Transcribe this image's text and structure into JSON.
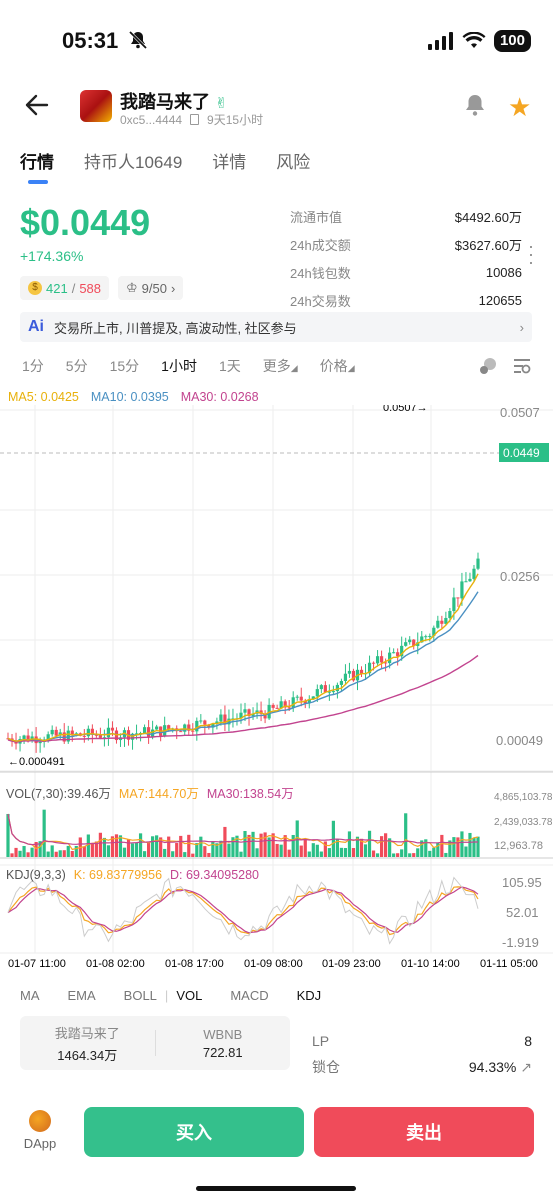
{
  "status": {
    "time": "05:31",
    "battery": "100"
  },
  "header": {
    "title": "我踏马来了",
    "address": "0xc5...4444",
    "age": "9天15小时"
  },
  "tabs": [
    {
      "label": "行情"
    },
    {
      "label": "持币人10649"
    },
    {
      "label": "详情"
    },
    {
      "label": "风险"
    }
  ],
  "price": {
    "value": "$0.0449",
    "change": "+174.36%",
    "holders_a": "421",
    "holders_b": "588",
    "rank": "9/50"
  },
  "stats": [
    {
      "label": "流通市值",
      "value": "$4492.60万"
    },
    {
      "label": "24h成交额",
      "value": "$3627.60万"
    },
    {
      "label": "24h钱包数",
      "value": "10086"
    },
    {
      "label": "24h交易数",
      "value": "120655"
    }
  ],
  "ai": {
    "badge": "Ai",
    "text": "交易所上市, 川普提及, 高波动性, 社区参与"
  },
  "intervals": [
    {
      "label": "1分"
    },
    {
      "label": "5分"
    },
    {
      "label": "15分"
    },
    {
      "label": "1小时"
    },
    {
      "label": "1天"
    },
    {
      "label": "更多"
    },
    {
      "label": "价格"
    }
  ],
  "ma": {
    "ma5": "MA5: 0.0425",
    "ma10": "MA10: 0.0395",
    "ma30": "MA30: 0.0268"
  },
  "chart_data": {
    "type": "candlestick",
    "y_axis": [
      "0.0507",
      "0.0256",
      "0.00049"
    ],
    "high_label": "0.0507→",
    "low_label": "←0.000491",
    "current": "0.0449",
    "x_axis": [
      "01-07 11:00",
      "01-08 02:00",
      "01-08 17:00",
      "01-09 08:00",
      "01-09 23:00",
      "01-10 14:00",
      "01-11 05:00"
    ]
  },
  "vol": {
    "title": "VOL(7,30):39.46万",
    "ma7": "MA7:144.70万",
    "ma30": "MA30:138.54万",
    "axis": [
      "4,865,103.78",
      "2,439,033.78",
      "12,963.78"
    ]
  },
  "kdj": {
    "title": "KDJ(9,3,3)",
    "k": "K:  69.83779956",
    "d": "D:  69.34095280",
    "axis": [
      "105.95",
      "52.01",
      "-1.919"
    ]
  },
  "indicators": [
    {
      "label": "MA"
    },
    {
      "label": "EMA"
    },
    {
      "label": "BOLL"
    },
    {
      "label": "VOL"
    },
    {
      "label": "MACD"
    },
    {
      "label": "KDJ"
    }
  ],
  "pool": {
    "token_label": "我踏马来了",
    "token_value": "1464.34万",
    "base_label": "WBNB",
    "base_value": "722.81"
  },
  "lp": {
    "lp_label": "LP",
    "lp_value": "8",
    "lock_label": "锁仓",
    "lock_value": "94.33%"
  },
  "bottom": {
    "dapp": "DApp",
    "buy": "买入",
    "sell": "卖出"
  },
  "colors": {
    "up": "#2bbf87",
    "down": "#f04b5a",
    "ma5": "#e8b10b",
    "ma10": "#4a90c2",
    "ma30": "#c2448f"
  }
}
